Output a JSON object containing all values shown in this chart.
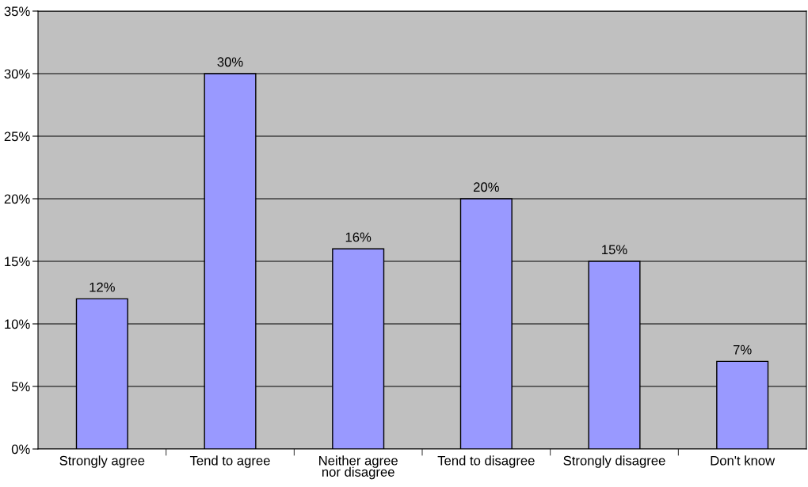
{
  "chart_data": {
    "type": "bar",
    "categories": [
      "Strongly agree",
      "Tend to agree",
      "Neither agree\nnor disagree",
      "Tend to disagree",
      "Strongly disagree",
      "Don't know"
    ],
    "values": [
      12,
      30,
      16,
      20,
      15,
      7
    ],
    "value_labels": [
      "12%",
      "30%",
      "16%",
      "20%",
      "15%",
      "7%"
    ],
    "color": "#9999ff",
    "ylim": [
      0,
      35
    ],
    "yticks": [
      {
        "value": 0,
        "label": "0%"
      },
      {
        "value": 5,
        "label": "5%"
      },
      {
        "value": 10,
        "label": "10%"
      },
      {
        "value": 15,
        "label": "15%"
      },
      {
        "value": 20,
        "label": "20%"
      },
      {
        "value": 25,
        "label": "25%"
      },
      {
        "value": 30,
        "label": "30%"
      },
      {
        "value": 35,
        "label": "35%"
      }
    ],
    "grid": "y",
    "legend": false
  }
}
